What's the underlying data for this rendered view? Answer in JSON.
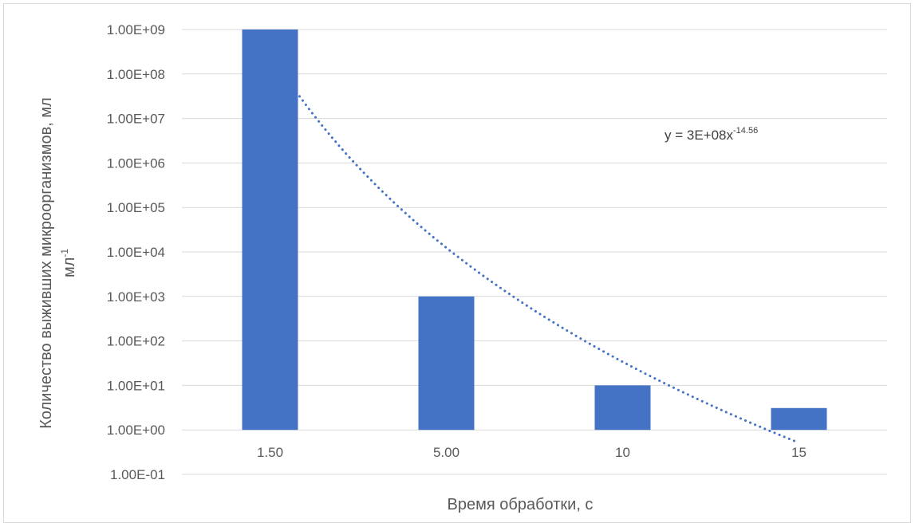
{
  "chart_data": {
    "type": "bar",
    "categories": [
      "1.50",
      "5.00",
      "10",
      "15"
    ],
    "values": [
      1000000000,
      1000,
      10,
      3.1
    ],
    "series": [
      {
        "values": [
          1000000000,
          1000,
          10,
          3.1
        ]
      }
    ],
    "xlabel": "Время обработки, с",
    "ylabel": "Количество выживших микроорганизмов, мл",
    "ylabel_superscript": "-1",
    "y_scale": "log",
    "ylim": [
      0.1,
      1000000000
    ],
    "y_ticks": [
      "1.00E-01",
      "1.00E+00",
      "1.00E+01",
      "1.00E+02",
      "1.00E+03",
      "1.00E+04",
      "1.00E+05",
      "1.00E+06",
      "1.00E+07",
      "1.00E+08",
      "1.00E+09"
    ],
    "grid": true,
    "legend": "none",
    "trendline": {
      "type": "power",
      "coefficient": 300000000,
      "exponent": -14.56,
      "label_text": "y = 3E+08x",
      "label_superscript": "-14.56",
      "style": "dotted"
    },
    "bar_color": "#4472c4",
    "trendline_color": "#4472c4",
    "grid_color": "#d9d9d9"
  }
}
